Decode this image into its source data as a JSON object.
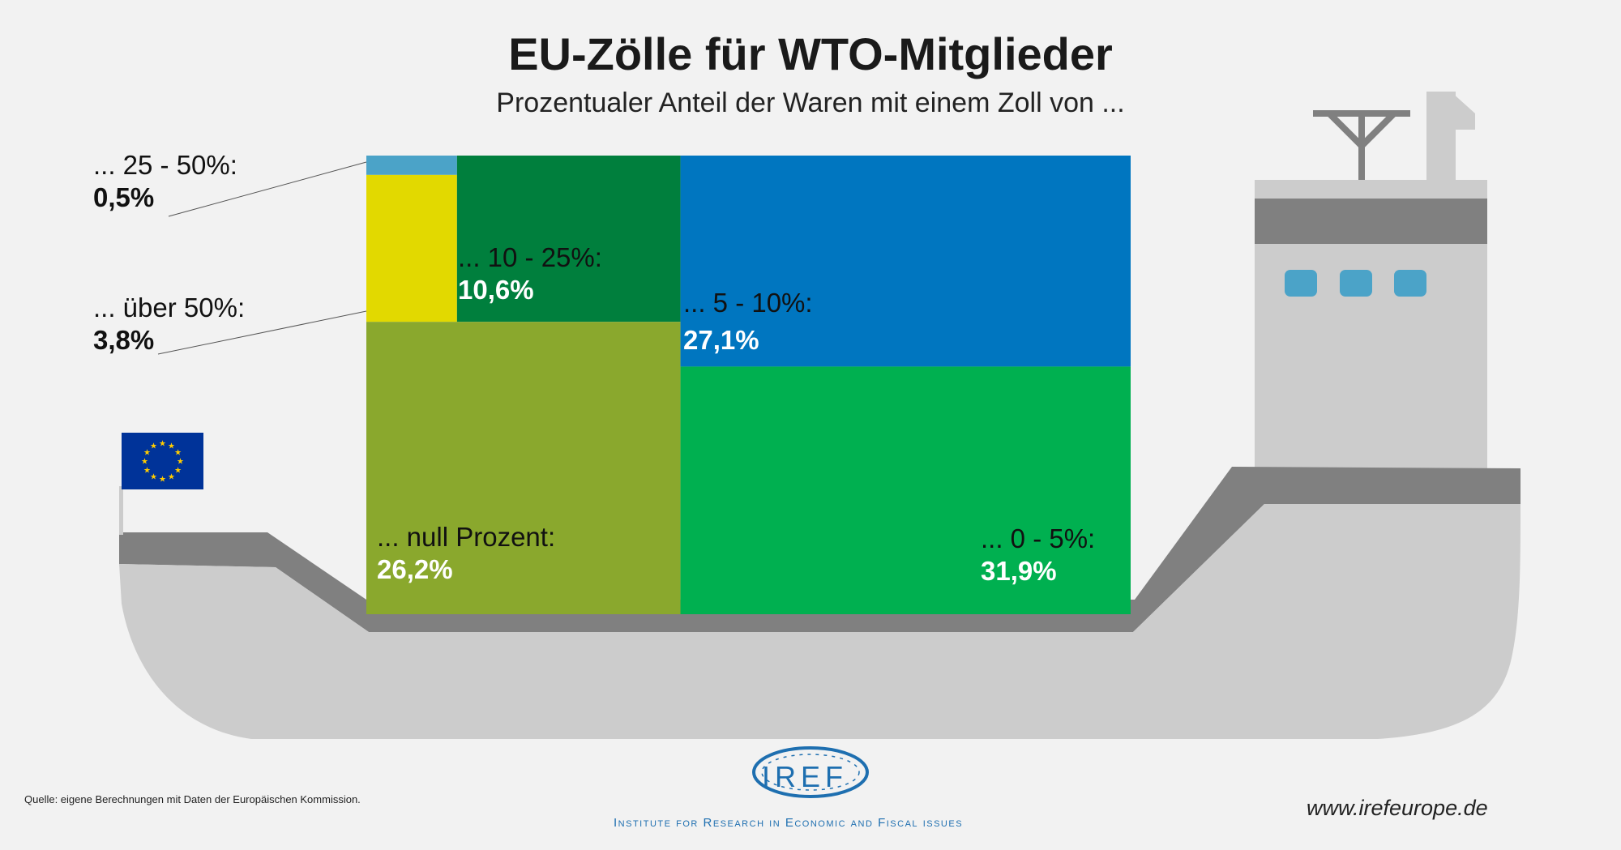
{
  "title": "EU-Zölle für WTO-Mitglieder",
  "subtitle": "Prozentualer Anteil der Waren mit einem Zoll von ...",
  "chart_data": {
    "type": "treemap",
    "title": "EU-Zölle für WTO-Mitglieder",
    "subtitle": "Prozentualer Anteil der Waren mit einem Zoll von ...",
    "unit": "%",
    "segments": [
      {
        "label": "... 25 - 50%:",
        "value": 0.5,
        "display": "0,5%",
        "color": "#4ba3c8"
      },
      {
        "label": "... über 50%:",
        "value": 3.8,
        "display": "3,8%",
        "color": "#e2d900"
      },
      {
        "label": "... 10 - 25%:",
        "value": 10.6,
        "display": "10,6%",
        "color": "#007f3d"
      },
      {
        "label": "... 5 - 10%:",
        "value": 27.1,
        "display": "27,1%",
        "color": "#0076c0"
      },
      {
        "label": "... null Prozent:",
        "value": 26.2,
        "display": "26,2%",
        "color": "#8aa82d"
      },
      {
        "label": "... 0 - 5%:",
        "value": 31.9,
        "display": "31,9%",
        "color": "#00b050"
      }
    ]
  },
  "footer": {
    "source": "Quelle: eigene Berechnungen mit Daten der Europäischen Kommission.",
    "url": "www.irefeurope.de",
    "logo_text": "IREF",
    "institute": "Institute for Research in Economic and Fiscal issues"
  },
  "colors": {
    "background": "#f2f2f2",
    "ship_body": "#cccccc",
    "ship_dark": "#808080",
    "window": "#4ba3c8",
    "flag": "#003399",
    "flag_stars": "#ffcc00",
    "brand": "#1e6fb0"
  }
}
